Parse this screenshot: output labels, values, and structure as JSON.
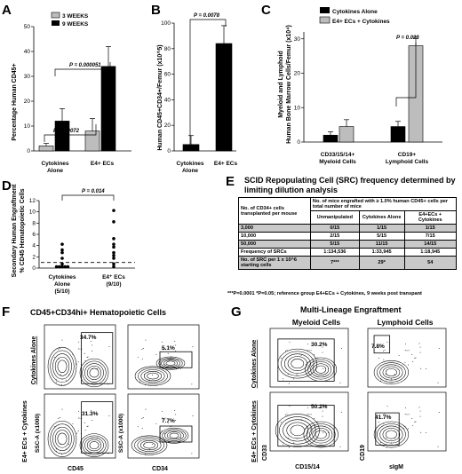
{
  "panels": {
    "A": {
      "label": "A",
      "ylabel": "Percentage Human CD45+",
      "legend": [
        "3 WEEKS",
        "9 WEEKS"
      ],
      "categories": [
        "Cytokines Alone",
        "E4+ ECs"
      ],
      "yticks": [
        "0",
        "10",
        "20",
        "30",
        "40",
        "50"
      ],
      "pvalues": [
        "P = 0.000051",
        "P = 0.0072"
      ]
    },
    "B": {
      "label": "B",
      "ylabel": "Human CD45+CD34+/Femur (x10^5)",
      "categories": [
        "Cytokines Alone",
        "E4+ ECs"
      ],
      "yticks": [
        "0",
        "20",
        "40",
        "60",
        "80",
        "100"
      ],
      "pvalue": "P = 0.0078"
    },
    "C": {
      "label": "C",
      "ylabel": "Myeloid and Lymphoid Human Bone Marrow Cells/Femur (x10^4)",
      "legend": [
        "Cytokines Alone",
        "E4+ ECs + Cytokines"
      ],
      "categories": [
        "CD33/15/14+ Myeloid Cells",
        "CD19+ Lymphoid Cells"
      ],
      "yticks": [
        "0",
        "10",
        "20",
        "30"
      ],
      "pvalue": "P = 0.023"
    },
    "D": {
      "label": "D",
      "ylabel": "Secondary Human Engraftment % CD45 Hematopoietic Cells",
      "categories": [
        "Cytokines Alone (5/10)",
        "E4+ ECs (9/10)"
      ],
      "yticks": [
        "0",
        "2",
        "4",
        "6",
        "8",
        "10",
        "12"
      ],
      "pvalue": "P = 0.014"
    },
    "E": {
      "label": "E",
      "title_line1": "SCID Repopulating Cell (SRC) frequency determined by",
      "title_line2": "limiting dilution analysis",
      "header_col1": "No. of CD34+ cells transplanted per mouse",
      "header_span": "No. of mice engrafted with ≥ 1.0% human CD45+ cells per total number of mice",
      "subheaders": [
        "Unmanipulated",
        "Cytokines Alone",
        "E4+ECs + Cytokines"
      ],
      "rows": [
        [
          "3,000",
          "0/15",
          "1/15",
          "1/15"
        ],
        [
          "10,000",
          "2/15",
          "5/15",
          "7/15"
        ],
        [
          "50,000",
          "5/15",
          "11/15",
          "14/15"
        ],
        [
          "Frequency of SRCs",
          "1:134,536",
          "1:33,945",
          "1:18,945"
        ],
        [
          "No. of SRC per 1 x 10^6 starting cells",
          "7***",
          "29*",
          "54"
        ]
      ],
      "footnote": "***P=0.0001   *P=0.05; reference group E4+ECs + Cytokines, 9 weeks post transpant"
    },
    "F": {
      "label": "F",
      "title": "CD45+CD34hi+ Hematopoietic Cells",
      "row_labels": [
        "Cytokines Alone",
        "E4+ ECs + Cytokines"
      ],
      "y_axis": "SSC-A (x1000)",
      "x_axes": [
        "CD45",
        "CD34"
      ],
      "percents": [
        "34.7%",
        "5.1%",
        "31.3%",
        "7.7%"
      ]
    },
    "G": {
      "label": "G",
      "title": "Multi-Lineage Engraftment",
      "col_labels": [
        "Myeloid Cells",
        "Lymphoid Cells"
      ],
      "row_labels": [
        "Cytokines Alone",
        "E4+ ECs + Cytokines"
      ],
      "y_axes": [
        "CD33",
        "CD19"
      ],
      "x_axes": [
        "CD15/14",
        "sIgM"
      ],
      "percents": [
        "30.2%",
        "7.8%",
        "50.2%",
        "41.7%"
      ]
    }
  },
  "chart_data": [
    {
      "panel": "A",
      "type": "bar",
      "categories": [
        "Cytokines Alone",
        "E4+ ECs"
      ],
      "series": [
        {
          "name": "3 WEEKS",
          "values": [
            2,
            8
          ],
          "errors": [
            1,
            5
          ]
        },
        {
          "name": "9 WEEKS",
          "values": [
            12,
            34
          ],
          "errors": [
            5,
            8
          ]
        }
      ],
      "ylim": [
        0,
        50
      ],
      "colors": [
        "#bdbdbd",
        "#000000"
      ]
    },
    {
      "panel": "B",
      "type": "bar",
      "categories": [
        "Cytokines Alone",
        "E4+ ECs"
      ],
      "values": [
        5,
        84
      ],
      "errors": [
        7,
        14
      ],
      "ylim": [
        0,
        100
      ]
    },
    {
      "panel": "C",
      "type": "bar",
      "categories": [
        "CD33/15/14+ Myeloid Cells",
        "CD19+ Lymphoid Cells"
      ],
      "series": [
        {
          "name": "Cytokines Alone",
          "values": [
            2,
            4.5
          ],
          "errors": [
            1,
            1.5
          ]
        },
        {
          "name": "E4+ ECs + Cytokines",
          "values": [
            4.5,
            28
          ],
          "errors": [
            2,
            2.5
          ]
        }
      ],
      "ylim": [
        0,
        32
      ],
      "colors": [
        "#000000",
        "#bdbdbd"
      ]
    },
    {
      "panel": "D",
      "type": "scatter",
      "categories": [
        "Cytokines Alone (5/10)",
        "E4+ ECs (9/10)"
      ],
      "groups": [
        [
          0,
          0,
          0,
          0,
          0,
          0.5,
          1.5,
          2.5,
          3.0,
          4.0
        ],
        [
          0,
          0.5,
          1.5,
          2.0,
          2.5,
          3.5,
          4.0,
          5.0,
          8.0,
          10.0
        ]
      ],
      "threshold": 1.0,
      "ylim": [
        0,
        12
      ]
    }
  ]
}
